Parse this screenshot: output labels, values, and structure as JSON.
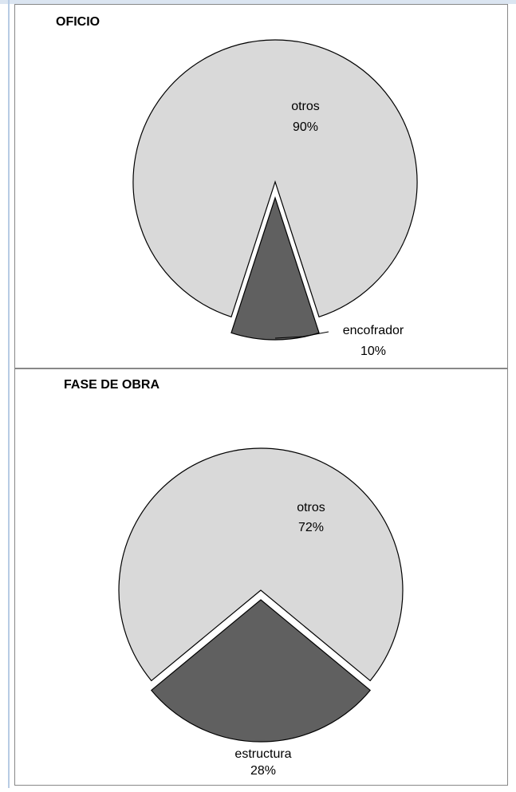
{
  "chart_data": [
    {
      "type": "pie",
      "title": "OFICIO",
      "categories": [
        "encofrador",
        "otros"
      ],
      "values": [
        10,
        90
      ],
      "value_labels": [
        "10%",
        "90%"
      ],
      "colors": [
        "#606060",
        "#d9d9d9"
      ]
    },
    {
      "type": "pie",
      "title": "FASE DE OBRA",
      "categories": [
        "estructura",
        "otros"
      ],
      "values": [
        28,
        72
      ],
      "value_labels": [
        "28%",
        "72%"
      ],
      "colors": [
        "#606060",
        "#d9d9d9"
      ]
    }
  ]
}
